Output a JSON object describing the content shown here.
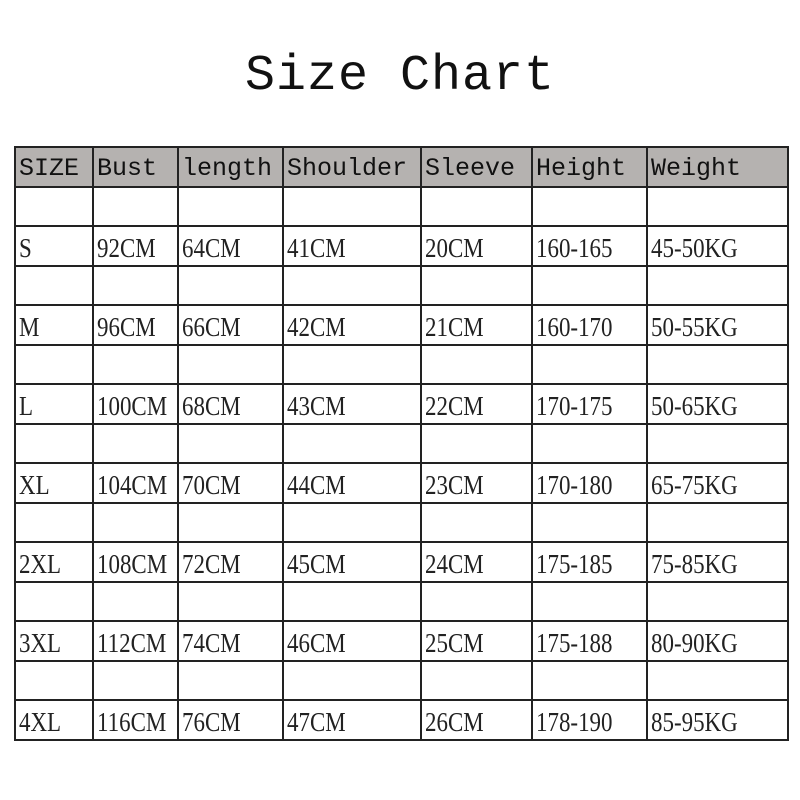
{
  "title": "Size Chart",
  "table": {
    "headers": [
      "SIZE",
      "Bust",
      "length",
      "Shoulder",
      "Sleeve",
      "Height",
      "Weight"
    ],
    "rows": [
      [
        "S",
        "92CM",
        "64CM",
        "41CM",
        "20CM",
        "160-165",
        "45-50KG"
      ],
      [
        "M",
        "96CM",
        "66CM",
        "42CM",
        "21CM",
        "160-170",
        "50-55KG"
      ],
      [
        "L",
        "100CM",
        "68CM",
        "43CM",
        "22CM",
        "170-175",
        "50-65KG"
      ],
      [
        "XL",
        "104CM",
        "70CM",
        "44CM",
        "23CM",
        "170-180",
        "65-75KG"
      ],
      [
        "2XL",
        "108CM",
        "72CM",
        "45CM",
        "24CM",
        "175-185",
        "75-85KG"
      ],
      [
        "3XL",
        "112CM",
        "74CM",
        "46CM",
        "25CM",
        "175-188",
        "80-90KG"
      ],
      [
        "4XL",
        "116CM",
        "76CM",
        "47CM",
        "26CM",
        "178-190",
        "85-95KG"
      ]
    ]
  },
  "colors": {
    "header_bg": "#b5b2b0",
    "border": "#222222"
  }
}
